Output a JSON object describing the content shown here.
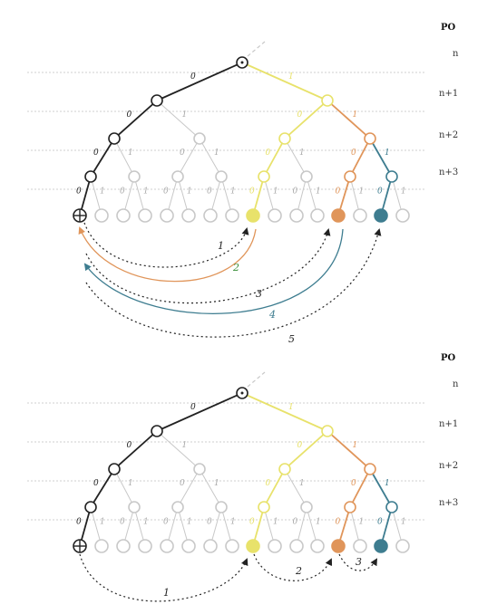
{
  "colors": {
    "black": "#222222",
    "grey": "#c8c8c8",
    "yellow": "#e8e26b",
    "orange": "#e0955a",
    "teal": "#3e7d90",
    "green": "#3a8f3a",
    "gridline": "#cfcfcf"
  },
  "panels": [
    {
      "po_label": "PO",
      "level_labels": [
        "n",
        "n+1",
        "n+2",
        "n+3"
      ],
      "arrow_labels": [
        "1",
        "2",
        "3",
        "4",
        "5"
      ],
      "start_symbol": "⊕"
    },
    {
      "po_label": "PO",
      "level_labels": [
        "n",
        "n+1",
        "n+2",
        "n+3"
      ],
      "arrow_labels": [
        "1",
        "2",
        "3"
      ],
      "start_symbol": "⊕"
    }
  ],
  "edge_bits": {
    "left": "0",
    "right": "1"
  }
}
